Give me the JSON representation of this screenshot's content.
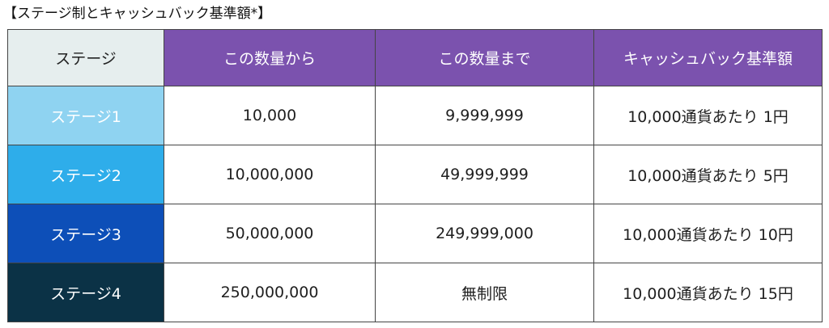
{
  "title": "【ステージ制とキャッシュバック基準額*】",
  "header": {
    "corner": "ステージ",
    "columns": [
      "この数量から",
      "この数量まで",
      "キャッシュバック基準額"
    ]
  },
  "colors": {
    "header_purple": "#7b52ae",
    "corner_bg": "#e6eeee",
    "stage_1": "#8fd3f1",
    "stage_2": "#2eadea",
    "stage_3": "#0d4fb8",
    "stage_4": "#0b3246"
  },
  "rows": [
    {
      "stage": "ステージ1",
      "from": "10,000",
      "to": "9,999,999",
      "cashback": "10,000通貨あたり 1円"
    },
    {
      "stage": "ステージ2",
      "from": "10,000,000",
      "to": "49,999,999",
      "cashback": "10,000通貨あたり 5円"
    },
    {
      "stage": "ステージ3",
      "from": "50,000,000",
      "to": "249,999,000",
      "cashback": "10,000通貨あたり 10円"
    },
    {
      "stage": "ステージ4",
      "from": "250,000,000",
      "to": "無制限",
      "cashback": "10,000通貨あたり 15円"
    }
  ]
}
